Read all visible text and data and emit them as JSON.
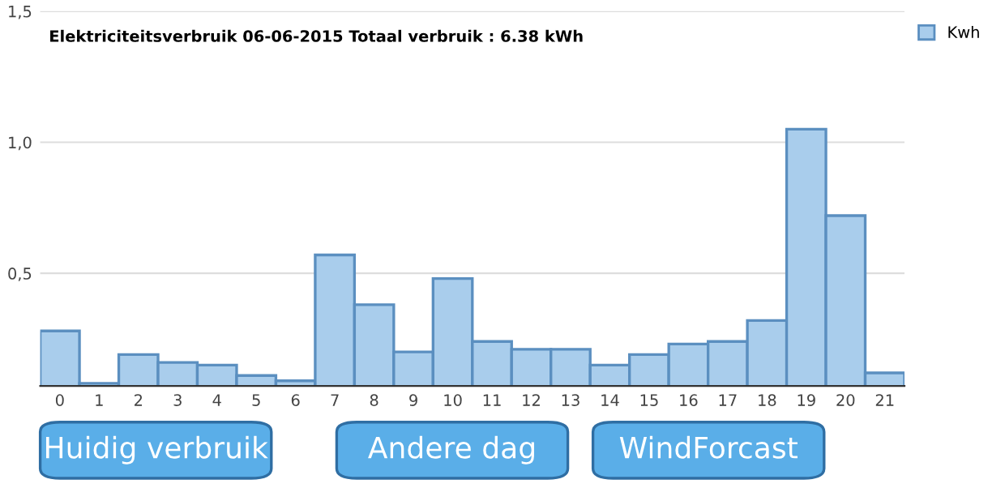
{
  "chart_data": {
    "type": "bar",
    "title": "Elektriciteitsverbruik 06-06-2015 Totaal verbruik : 6.38 kWh",
    "categories": [
      "0",
      "1",
      "2",
      "3",
      "4",
      "5",
      "6",
      "7",
      "8",
      "9",
      "10",
      "11",
      "12",
      "13",
      "14",
      "15",
      "16",
      "17",
      "18",
      "19",
      "20",
      "21"
    ],
    "series": [
      {
        "name": "Kwh",
        "color": "#a9cdec",
        "values": [
          0.28,
          0.08,
          0.19,
          0.16,
          0.15,
          0.11,
          0.09,
          0.57,
          0.38,
          0.2,
          0.48,
          0.24,
          0.21,
          0.21,
          0.15,
          0.19,
          0.23,
          0.24,
          0.32,
          1.05,
          0.72,
          0.12
        ]
      }
    ],
    "ylim": [
      0.07,
      1.5
    ],
    "yticks": [
      {
        "value": 0.5,
        "label": "0,5"
      },
      {
        "value": 1.0,
        "label": "1,0"
      },
      {
        "value": 1.5,
        "label": "1,5"
      }
    ],
    "grid": "y",
    "legend": "top right",
    "annotations": [
      "Huidig verbruik",
      "Andere dag",
      "WindForcast"
    ]
  }
}
